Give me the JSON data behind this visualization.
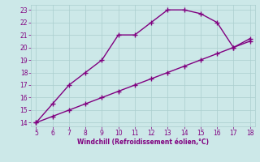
{
  "xlabel": "Windchill (Refroidissement éolien,°C)",
  "line1_x": [
    5,
    6,
    7,
    8,
    9,
    10,
    11,
    12,
    13,
    14,
    15,
    16,
    17,
    18
  ],
  "line1_y": [
    14.0,
    15.5,
    17.0,
    18.0,
    19.0,
    21.0,
    21.0,
    22.0,
    23.0,
    23.0,
    22.7,
    22.0,
    20.0,
    20.7
  ],
  "line2_x": [
    5,
    6,
    7,
    8,
    9,
    10,
    11,
    12,
    13,
    14,
    15,
    16,
    17,
    18
  ],
  "line2_y": [
    14.0,
    14.5,
    15.0,
    15.5,
    16.0,
    16.5,
    17.0,
    17.5,
    18.0,
    18.5,
    19.0,
    19.5,
    20.0,
    20.5
  ],
  "xlim": [
    4.7,
    18.3
  ],
  "ylim": [
    13.7,
    23.4
  ],
  "xticks": [
    5,
    6,
    7,
    8,
    9,
    10,
    11,
    12,
    13,
    14,
    15,
    16,
    17,
    18
  ],
  "yticks": [
    14,
    15,
    16,
    17,
    18,
    19,
    20,
    21,
    22,
    23
  ],
  "line_color": "#800080",
  "bg_color": "#cce8e8",
  "grid_color": "#aacece",
  "tick_color": "#800080",
  "label_color": "#800080",
  "marker1": "+",
  "marker1_size": 5,
  "marker2": "+",
  "marker2_size": 4,
  "line_width": 1.0
}
